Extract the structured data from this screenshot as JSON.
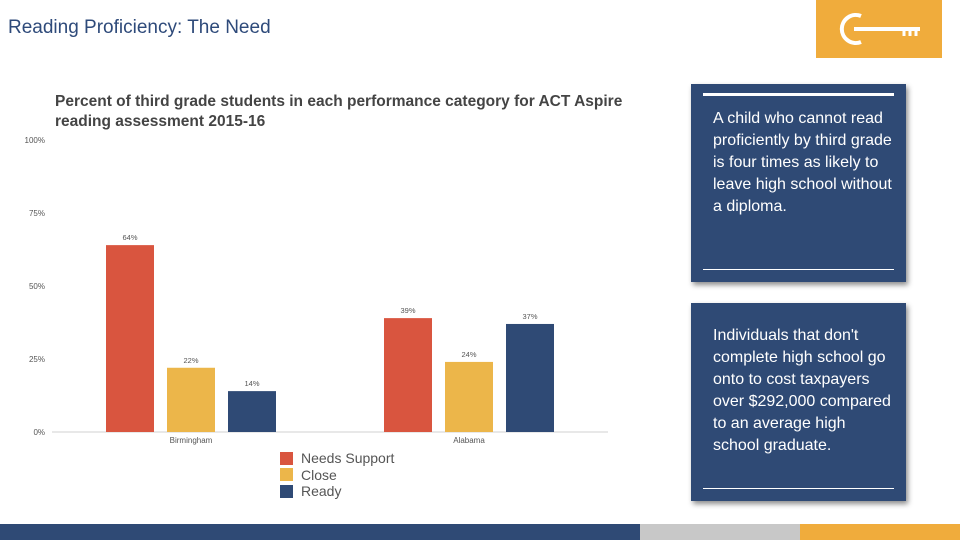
{
  "slide": {
    "title": "Reading Proficiency: The Need"
  },
  "logo": {
    "icon": "key-icon",
    "color": "#f0ac3c"
  },
  "chart_data": {
    "type": "bar",
    "title": "Percent of third grade students in each performance category for ACT Aspire reading assessment 2015-16",
    "categories": [
      "Birmingham",
      "Alabama"
    ],
    "series": [
      {
        "name": "Needs Support",
        "color": "#d9553f",
        "values": [
          64,
          39
        ]
      },
      {
        "name": "Close",
        "color": "#ecb64a",
        "values": [
          22,
          24
        ]
      },
      {
        "name": "Ready",
        "color": "#2f4a75",
        "values": [
          14,
          37
        ]
      }
    ],
    "ylim": [
      0,
      100
    ],
    "yticks": [
      0,
      25,
      50,
      75,
      100
    ],
    "ytick_labels": [
      "0%",
      "25%",
      "50%",
      "75%",
      "100%"
    ],
    "data_labels": [
      [
        "64%",
        "39%"
      ],
      [
        "22%",
        "24%"
      ],
      [
        "14%",
        "37%"
      ]
    ],
    "xlabel": "",
    "ylabel": "",
    "legend_position": "bottom"
  },
  "callouts": [
    {
      "text": "A child who cannot read proficiently by third grade is four times as likely to leave high school without a diploma."
    },
    {
      "text": "Individuals that don't complete high school go onto to cost taxpayers over $292,000 compared to an average high school graduate."
    }
  ],
  "footer": {
    "colors": [
      "#2f4a75",
      "#c8c8c8",
      "#f0ac3c"
    ]
  }
}
